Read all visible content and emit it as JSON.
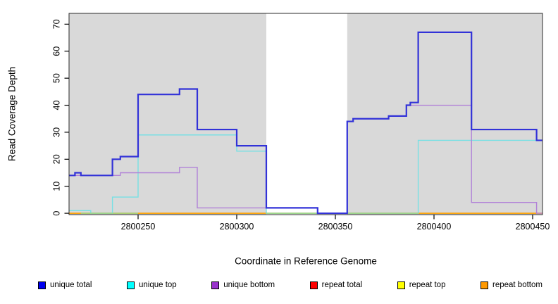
{
  "chart_data": {
    "type": "line",
    "step": true,
    "xlabel": "Coordinate in Reference Genome",
    "ylabel": "Read Coverage Depth",
    "xlim": [
      2800215,
      2800455
    ],
    "ylim": [
      -0.5,
      74
    ],
    "x_ticks": [
      2800250,
      2800300,
      2800350,
      2800400,
      2800450
    ],
    "y_ticks": [
      0,
      10,
      20,
      30,
      40,
      50,
      60,
      70
    ],
    "grid": false,
    "plot_background": "#d9d9d9",
    "gap_region": {
      "x1": 2800315,
      "x2": 2800356,
      "fill": "#ffffff"
    },
    "legend_position": "bottom",
    "series": [
      {
        "name": "unique total",
        "color": "#3232d8",
        "legend_color": "#0000f0",
        "width": 2.2,
        "z": 7,
        "points": [
          [
            2800215,
            14
          ],
          [
            2800218,
            15
          ],
          [
            2800221,
            14
          ],
          [
            2800237,
            20
          ],
          [
            2800241,
            21
          ],
          [
            2800250,
            44
          ],
          [
            2800271,
            46
          ],
          [
            2800280,
            31
          ],
          [
            2800300,
            25
          ],
          [
            2800315,
            2
          ],
          [
            2800341,
            0
          ],
          [
            2800356,
            34
          ],
          [
            2800359,
            35
          ],
          [
            2800377,
            36
          ],
          [
            2800386,
            40
          ],
          [
            2800388,
            41
          ],
          [
            2800392,
            67
          ],
          [
            2800419,
            31
          ],
          [
            2800452,
            27
          ],
          [
            2800455,
            27
          ]
        ]
      },
      {
        "name": "unique top",
        "color": "#78e0e4",
        "legend_color": "#00ffff",
        "width": 1.4,
        "z": 4,
        "points": [
          [
            2800215,
            1
          ],
          [
            2800226,
            0
          ],
          [
            2800237,
            6
          ],
          [
            2800250,
            29
          ],
          [
            2800300,
            23
          ],
          [
            2800315,
            0
          ],
          [
            2800392,
            27
          ],
          [
            2800455,
            27
          ]
        ]
      },
      {
        "name": "unique bottom",
        "color": "#b182d8",
        "legend_color": "#9932cc",
        "width": 1.4,
        "z": 6,
        "points": [
          [
            2800215,
            14
          ],
          [
            2800241,
            15
          ],
          [
            2800271,
            17
          ],
          [
            2800280,
            2
          ],
          [
            2800341,
            0
          ],
          [
            2800356,
            34
          ],
          [
            2800359,
            35
          ],
          [
            2800377,
            36
          ],
          [
            2800386,
            40
          ],
          [
            2800419,
            4
          ],
          [
            2800452,
            0
          ],
          [
            2800455,
            0
          ]
        ]
      },
      {
        "name": "repeat total",
        "color": "#ff0000",
        "legend_color": "#ff0000",
        "width": 1.4,
        "z": 1,
        "points": [
          [
            2800215,
            0
          ],
          [
            2800455,
            0
          ]
        ]
      },
      {
        "name": "repeat top",
        "color": "#ffff00",
        "legend_color": "#ffff00",
        "width": 1.4,
        "z": 2,
        "points": [
          [
            2800215,
            0
          ],
          [
            2800455,
            0
          ]
        ]
      },
      {
        "name": "repeat bottom",
        "color": "#ffa200",
        "legend_color": "#ff9900",
        "width": 1.4,
        "z": 3,
        "points": [
          [
            2800215,
            0
          ],
          [
            2800455,
            0
          ]
        ]
      }
    ],
    "baseline_overlays": {
      "color": "#8fd98f",
      "width": 1.4,
      "z": 5,
      "value": 0,
      "segments": [
        [
          2800221,
          2800250
        ],
        [
          2800315,
          2800392
        ]
      ]
    }
  }
}
